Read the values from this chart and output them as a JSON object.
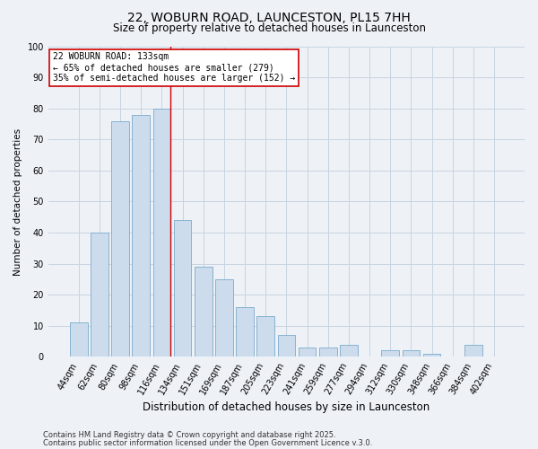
{
  "title": "22, WOBURN ROAD, LAUNCESTON, PL15 7HH",
  "subtitle": "Size of property relative to detached houses in Launceston",
  "xlabel": "Distribution of detached houses by size in Launceston",
  "ylabel": "Number of detached properties",
  "categories": [
    "44sqm",
    "62sqm",
    "80sqm",
    "98sqm",
    "116sqm",
    "134sqm",
    "151sqm",
    "169sqm",
    "187sqm",
    "205sqm",
    "223sqm",
    "241sqm",
    "259sqm",
    "277sqm",
    "294sqm",
    "312sqm",
    "330sqm",
    "348sqm",
    "366sqm",
    "384sqm",
    "402sqm"
  ],
  "values": [
    11,
    40,
    76,
    78,
    80,
    44,
    29,
    25,
    16,
    13,
    7,
    3,
    3,
    4,
    0,
    2,
    2,
    1,
    0,
    4,
    0
  ],
  "bar_color": "#ccdcec",
  "bar_edge_color": "#7aabcc",
  "highlight_index": 5,
  "highlight_line_color": "#cc0000",
  "annotation_text": "22 WOBURN ROAD: 133sqm\n← 65% of detached houses are smaller (279)\n35% of semi-detached houses are larger (152) →",
  "annotation_box_color": "#ffffff",
  "annotation_box_edge_color": "#cc0000",
  "ylim": [
    0,
    100
  ],
  "yticks": [
    0,
    10,
    20,
    30,
    40,
    50,
    60,
    70,
    80,
    90,
    100
  ],
  "grid_color": "#c8d4e0",
  "background_color": "#eef2f7",
  "footer_line1": "Contains HM Land Registry data © Crown copyright and database right 2025.",
  "footer_line2": "Contains public sector information licensed under the Open Government Licence v.3.0.",
  "title_fontsize": 10,
  "subtitle_fontsize": 8.5,
  "xlabel_fontsize": 8.5,
  "ylabel_fontsize": 7.5,
  "tick_fontsize": 7,
  "annotation_fontsize": 7,
  "footer_fontsize": 6
}
